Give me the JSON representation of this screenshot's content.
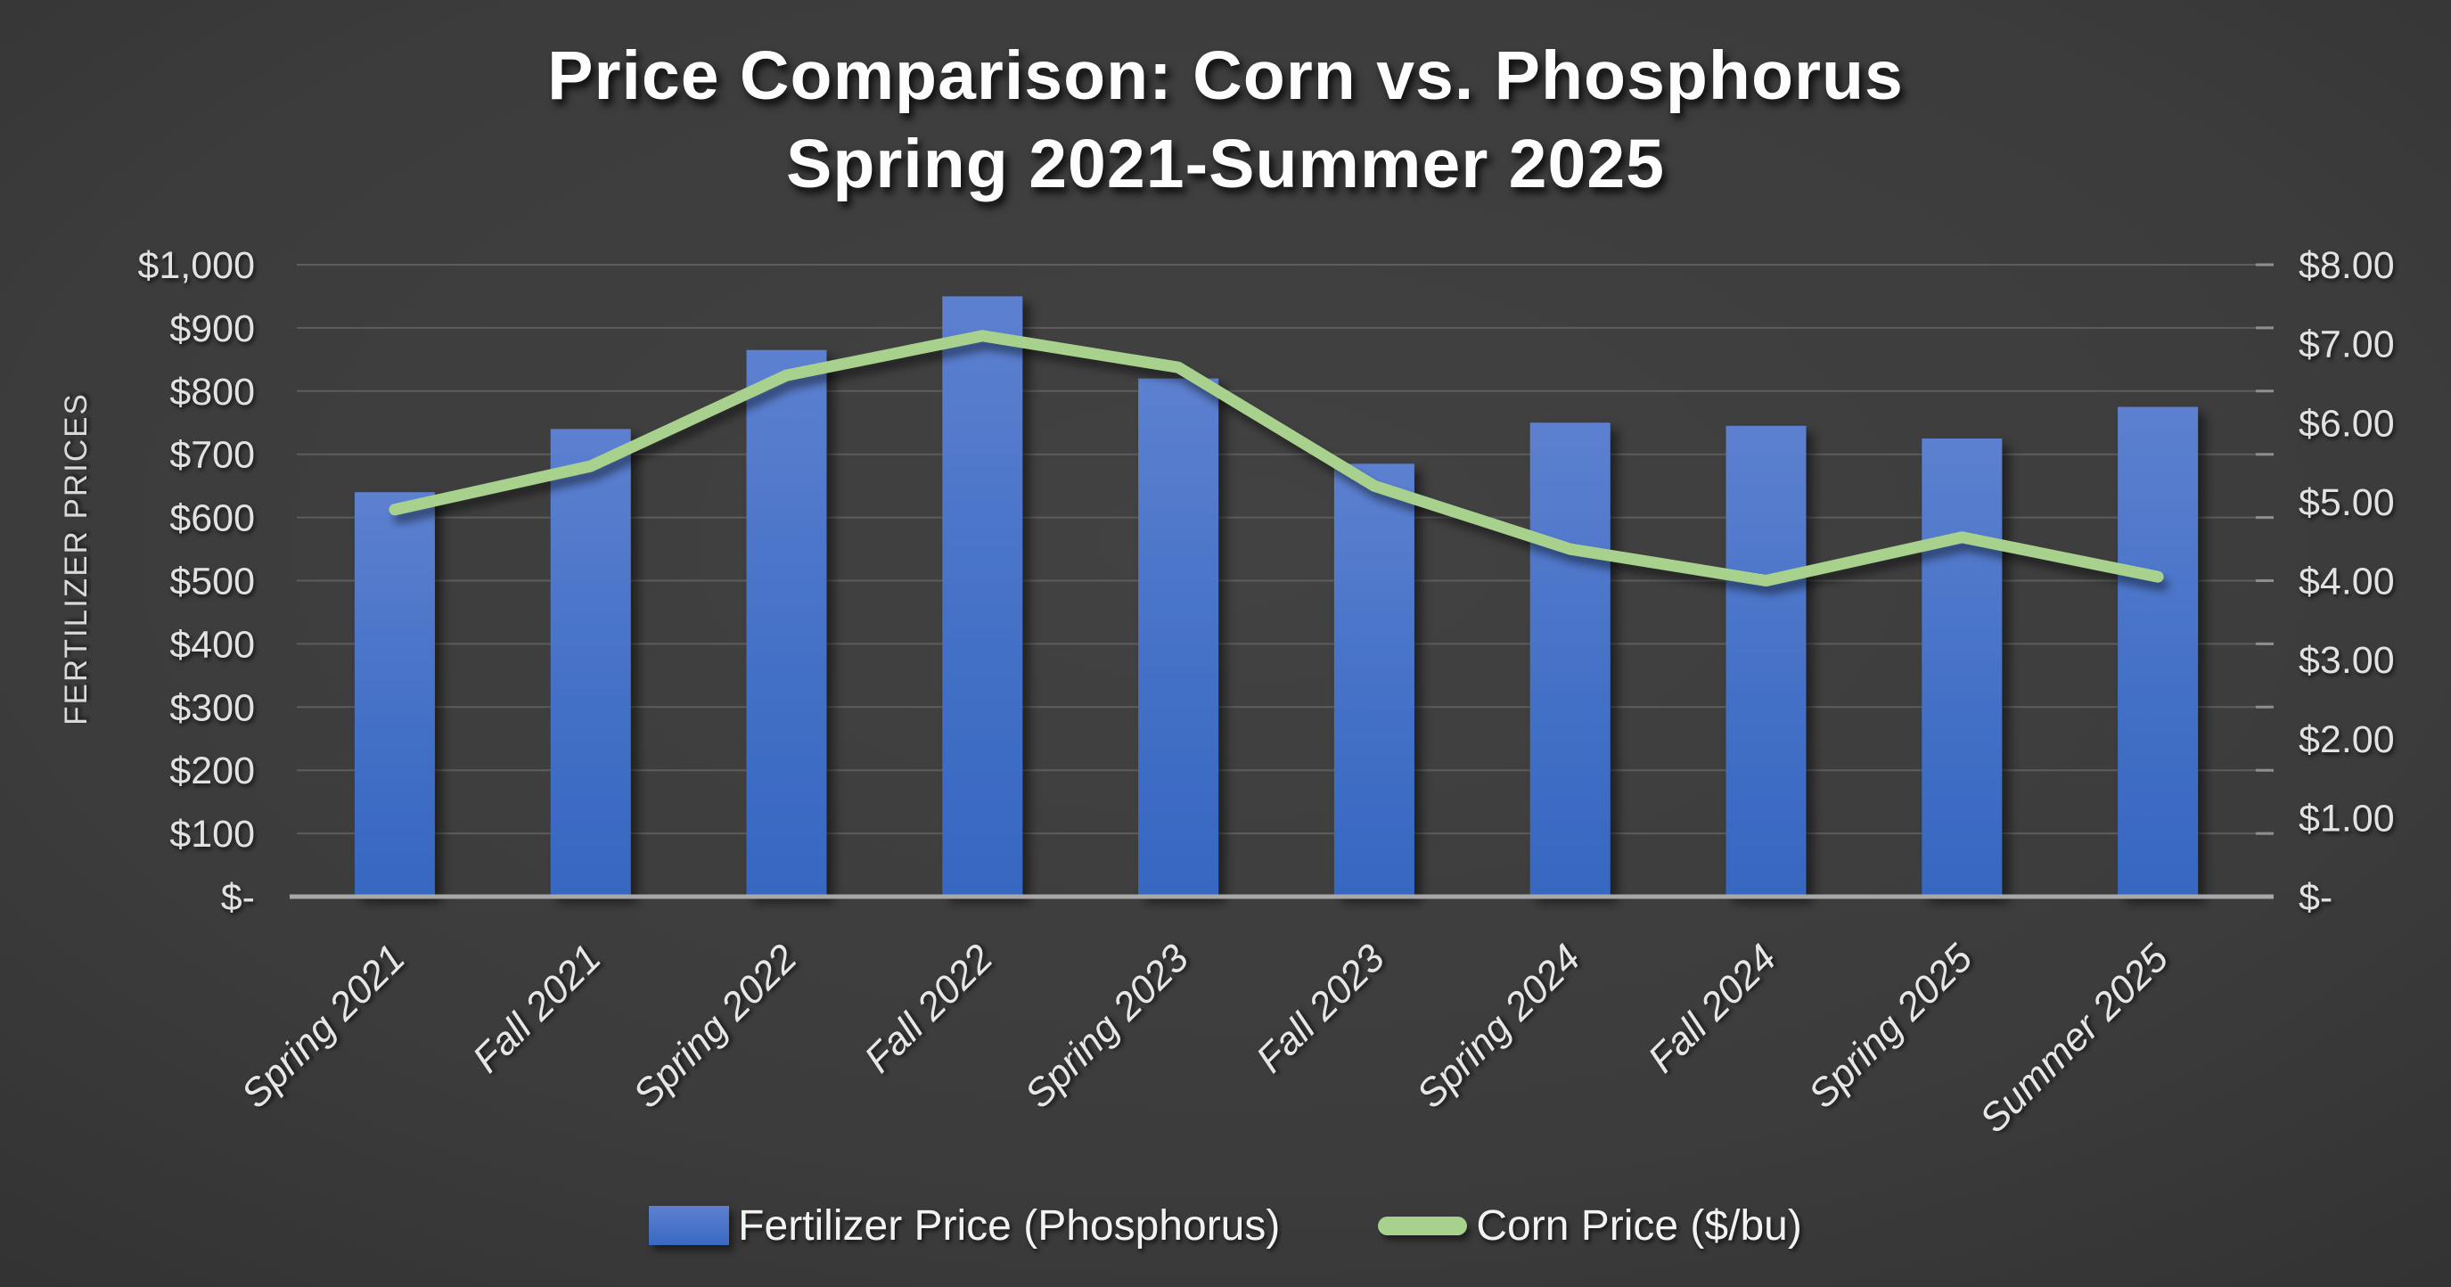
{
  "title": {
    "line1": "Price Comparison: Corn vs. Phosphorus",
    "line2": "Spring 2021-Summer 2025"
  },
  "left_axis": {
    "title": "FERTILIZER PRICES",
    "tick_labels": [
      "$-",
      "$100",
      "$200",
      "$300",
      "$400",
      "$500",
      "$600",
      "$700",
      "$800",
      "$900",
      "$1,000"
    ]
  },
  "right_axis": {
    "tick_labels": [
      "$-",
      "$1.00",
      "$2.00",
      "$3.00",
      "$4.00",
      "$5.00",
      "$6.00",
      "$7.00",
      "$8.00"
    ]
  },
  "legend": {
    "items": [
      {
        "label": "Fertilizer Price (Phosphorus)",
        "swatch": "bar",
        "color": "#4472c4"
      },
      {
        "label": "Corn Price ($/bu)",
        "swatch": "line",
        "color": "#a9d18e"
      }
    ]
  },
  "chart_data": {
    "type": "bar",
    "subtype": "combo-bar-line-dual-axis",
    "title": "Price Comparison: Corn vs. Phosphorus Spring 2021-Summer 2025",
    "categories": [
      "Spring 2021",
      "Fall 2021",
      "Spring 2022",
      "Fall 2022",
      "Spring 2023",
      "Fall 2023",
      "Spring 2024",
      "Fall 2024",
      "Spring 2025",
      "Summer 2025"
    ],
    "series": [
      {
        "name": "Fertilizer Price (Phosphorus)",
        "type": "bar",
        "axis": "left",
        "values": [
          640,
          740,
          865,
          950,
          820,
          685,
          750,
          745,
          725,
          775
        ]
      },
      {
        "name": "Corn Price ($/bu)",
        "type": "line",
        "axis": "right",
        "values": [
          4.9,
          5.45,
          6.6,
          7.1,
          6.7,
          5.2,
          4.4,
          4.0,
          4.55,
          4.05
        ]
      }
    ],
    "xlabel": "",
    "ylabel": "FERTILIZER PRICES",
    "left_ylim": [
      0,
      1000
    ],
    "left_step": 100,
    "right_ylim": [
      0,
      8
    ],
    "right_step": 1,
    "grid": true,
    "legend_position": "bottom",
    "colors": {
      "bar_top": "#5d80d0",
      "bar_mid": "#4471c6",
      "bar_bottom": "#3667c2",
      "line": "#a9d18e",
      "gridline": "#5d5d5d",
      "axis_line": "#a8a8a8",
      "text": "#e2e2e2",
      "background_center": "#424242",
      "background_edge": "#1a1a1a"
    }
  }
}
